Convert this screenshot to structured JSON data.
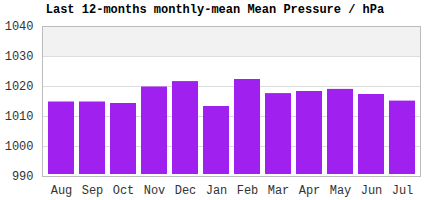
{
  "chart_data": {
    "type": "bar",
    "title": "Last 12-months monthly-mean Mean Pressure / hPa",
    "categories": [
      "Aug",
      "Sep",
      "Oct",
      "Nov",
      "Dec",
      "Jan",
      "Feb",
      "Mar",
      "Apr",
      "May",
      "Jun",
      "Jul"
    ],
    "values": [
      1015.5,
      1015.5,
      1015,
      1020.5,
      1022.3,
      1014,
      1023,
      1018.3,
      1019,
      1019.7,
      1018,
      1015.8
    ],
    "color": "#a020f0",
    "ylim": [
      990,
      1040
    ],
    "yticks": [
      990,
      1000,
      1010,
      1020,
      1030,
      1040
    ],
    "grid": true
  }
}
